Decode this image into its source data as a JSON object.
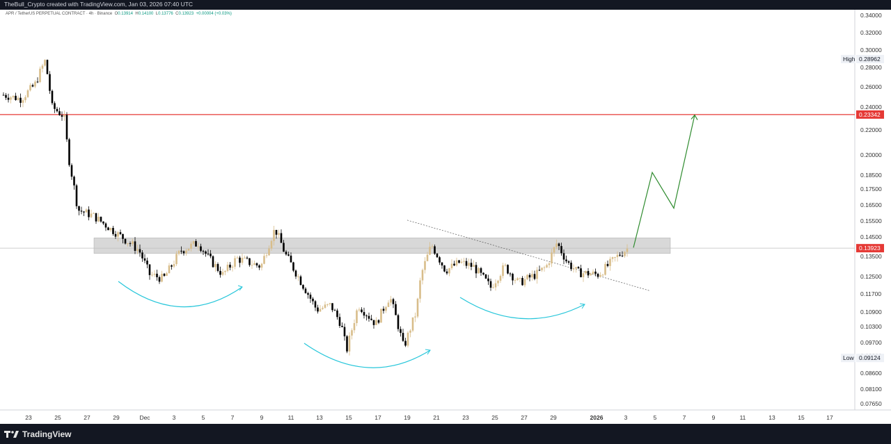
{
  "header": {
    "text": "TheBull_Crypto created with TradingView.com, Jan 03, 2026 07:40 UTC"
  },
  "legend": {
    "symbol": "APR / TetherUS PERPETUAL CONTRACT · 4h · Binance",
    "o_label": "O",
    "o": "0.13914",
    "h_label": "H",
    "h": "0.14100",
    "l_label": "L",
    "l": "0.13776",
    "c_label": "C",
    "c": "0.13923",
    "change": "+0.00004 (+0.03%)"
  },
  "footer": {
    "logo_text": "TradingView"
  },
  "colors": {
    "bull": "#d8bd8a",
    "bear": "#000000",
    "resistance": "#e53935",
    "projection": "#2e8b2e",
    "arc": "#26c6da",
    "zone": "#b2b2b2"
  },
  "chart_data": {
    "type": "candlestick",
    "timeframe": "4h",
    "ylim": [
      0.072,
      0.345
    ],
    "y_ticks": [
      "0.34000",
      "0.32000",
      "0.30000",
      "0.28000",
      "0.26000",
      "0.24000",
      "0.22000",
      "0.20000",
      "0.18500",
      "0.17500",
      "0.16500",
      "0.15500",
      "0.14500",
      "0.13500",
      "0.12500",
      "0.11700",
      "0.10900",
      "0.10300",
      "0.09700",
      "0.09200",
      "0.08600",
      "0.08100",
      "0.07650"
    ],
    "x_ticks": [
      "23",
      "25",
      "27",
      "29",
      "Dec",
      "3",
      "5",
      "7",
      "9",
      "11",
      "13",
      "15",
      "17",
      "19",
      "21",
      "23",
      "25",
      "27",
      "29",
      "2026",
      "3",
      "5",
      "7",
      "9",
      "11",
      "13",
      "15",
      "17"
    ],
    "price_labels": [
      {
        "label": "High",
        "value": "0.28962"
      },
      {
        "label": "",
        "value": "0.23342"
      },
      {
        "label": "",
        "value": "0.13923"
      },
      {
        "label": "Low",
        "value": "0.09124"
      }
    ],
    "resistance_level": 0.23342,
    "current_price": 0.13923,
    "zone": [
      0.1365,
      0.1445
    ],
    "trend": "downtrend from peak near 0.289 (Nov 24) to 0.091 (Dec 15), range 0.10–0.15 through Dec, breakout attempt at 0.139 (Jan 3)",
    "projection": [
      0.1395,
      0.187,
      0.163,
      0.233
    ],
    "annotations": [
      "support/resistance zone",
      "descending trendline",
      "three rounded bottoms",
      "projected bullish path to 0.23342"
    ]
  }
}
